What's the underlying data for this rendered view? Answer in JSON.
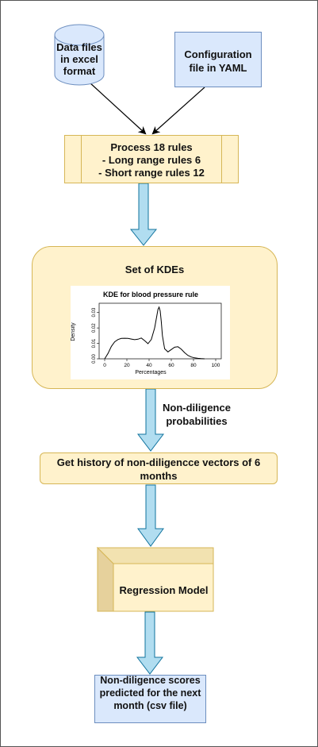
{
  "nodes": {
    "data_files": "Data files in excel format",
    "config": "Configuration file in YAML",
    "process": {
      "line1": "Process 18 rules",
      "line2": "- Long range rules 6",
      "line3": "- Short range rules 12"
    },
    "kde_set": "Set of KDEs",
    "history": "Get history of non-diligencce vectors of 6 months",
    "regression": "Regression Model",
    "output": "Non-diligence scores predicted for the next month (csv file)"
  },
  "edge_labels": {
    "non_diligence_probabilities": "Non-diligence probabilities"
  },
  "chart_data": {
    "type": "line",
    "title": "KDE for blood pressure rule",
    "xlabel": "Percentages",
    "ylabel": "Density",
    "x_ticks": [
      "0",
      "20",
      "40",
      "60",
      "80",
      "100"
    ],
    "y_ticks": [
      "0.00",
      "0.01",
      "0.02",
      "0.03"
    ],
    "xlim": [
      -5,
      105
    ],
    "ylim": [
      0,
      0.036
    ],
    "grid": false,
    "series": [
      {
        "x": [
          0,
          3,
          6,
          9,
          12,
          15,
          18,
          21,
          24,
          27,
          30,
          33,
          36,
          39,
          42,
          45,
          47,
          48,
          49,
          50,
          51,
          52,
          54,
          57,
          60,
          63,
          66,
          69,
          72,
          75,
          78,
          81,
          84,
          87,
          90
        ],
        "y": [
          0.0,
          0.0035,
          0.008,
          0.011,
          0.0125,
          0.0132,
          0.0133,
          0.0132,
          0.0128,
          0.0124,
          0.0127,
          0.0135,
          0.0118,
          0.0098,
          0.0125,
          0.02,
          0.028,
          0.032,
          0.0335,
          0.031,
          0.024,
          0.015,
          0.0065,
          0.0045,
          0.006,
          0.0075,
          0.0078,
          0.0062,
          0.004,
          0.0022,
          0.0012,
          0.0006,
          0.0003,
          0.0001,
          0.0
        ]
      }
    ]
  },
  "colors": {
    "blue_fill": "#dae8fc",
    "blue_stroke": "#6c8ebf",
    "yellow_fill": "#fff2cc",
    "yellow_stroke": "#d6b656",
    "arrow_fill": "#b1ddf0",
    "arrow_stroke": "#10739e"
  }
}
